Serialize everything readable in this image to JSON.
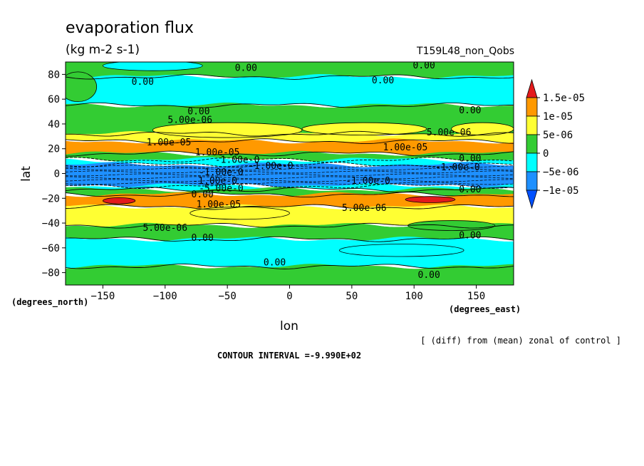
{
  "chart_data": {
    "type": "heatmap",
    "title": "evaporation flux",
    "subtitle": "(kg m-2 s-1)",
    "run_label": "T159L48_non_Qobs",
    "xlabel": "lon",
    "ylabel": "lat",
    "x_unit_label": "(degrees_east)",
    "y_unit_label": "(degrees_north)",
    "xlim": [
      -180,
      180
    ],
    "ylim": [
      -90,
      90
    ],
    "x_ticks": [
      -150,
      -100,
      -50,
      0,
      50,
      100,
      150
    ],
    "y_ticks": [
      80,
      60,
      40,
      20,
      0,
      -20,
      -40,
      -60,
      -80
    ],
    "note": "[ (diff) from (mean) zonal of control ]",
    "contour_interval_text": "CONTOUR INTERVAL =-9.990E+02",
    "colorbar": {
      "labels": [
        "1.5e-05",
        "1e-05",
        "5e-06",
        "0",
        "-5e-06",
        "-1e-05"
      ],
      "colors": [
        "#e41a1c",
        "#ff9900",
        "#ffff33",
        "#33cc33",
        "#00ffff",
        "#1e90ff",
        "#0050ff"
      ],
      "extend": "both"
    },
    "bands": [
      {
        "lat": [
          78,
          90
        ],
        "value": "0 to 5e-06",
        "color": "#33cc33"
      },
      {
        "lat": [
          55,
          78
        ],
        "value": "-5e-06 to 0",
        "color": "#00ffff"
      },
      {
        "lat": [
          32,
          55
        ],
        "value": "0 to 5e-06",
        "color": "#33cc33"
      },
      {
        "lat": [
          26,
          32
        ],
        "value": "5e-06 to 1e-05",
        "color": "#ffff33"
      },
      {
        "lat": [
          16,
          26
        ],
        "value": "1e-05 to 1.5e-05",
        "color": "#ff9900"
      },
      {
        "lat": [
          11,
          16
        ],
        "value": "0 to 5e-06",
        "color": "#33cc33"
      },
      {
        "lat": [
          7,
          11
        ],
        "value": "-5e-06 to 0",
        "color": "#00ffff"
      },
      {
        "lat": [
          -10,
          7
        ],
        "value": "-1e-05 to -5e-06",
        "color": "#1e90ff"
      },
      {
        "lat": [
          -13,
          -10
        ],
        "value": "-5e-06 to 0",
        "color": "#00ffff"
      },
      {
        "lat": [
          -17,
          -13
        ],
        "value": "0 to 5e-06",
        "color": "#33cc33"
      },
      {
        "lat": [
          -27,
          -17
        ],
        "value": "1e-05 to 1.5e-05",
        "color": "#ff9900"
      },
      {
        "lat": [
          -42,
          -27
        ],
        "value": "5e-06 to 1e-05",
        "color": "#ffff33"
      },
      {
        "lat": [
          -53,
          -42
        ],
        "value": "0 to 5e-06",
        "color": "#33cc33"
      },
      {
        "lat": [
          -75,
          -53
        ],
        "value": "-5e-06 to 0",
        "color": "#00ffff"
      },
      {
        "lat": [
          -90,
          -75
        ],
        "value": "0 to 5e-06",
        "color": "#33cc33"
      }
    ],
    "blobs": [
      {
        "lon": -50,
        "lat": 35,
        "rx": 60,
        "ry": 6,
        "color": "#ffff33"
      },
      {
        "lon": 60,
        "lat": 36,
        "rx": 50,
        "ry": 5,
        "color": "#ffff33"
      },
      {
        "lon": 155,
        "lat": 36,
        "rx": 25,
        "ry": 5,
        "color": "#ffff33"
      },
      {
        "lon": -170,
        "lat": 70,
        "rx": 15,
        "ry": 12,
        "color": "#33cc33"
      },
      {
        "lon": -110,
        "lat": 87,
        "rx": 40,
        "ry": 4,
        "color": "#00ffff"
      },
      {
        "lon": 130,
        "lat": -42,
        "rx": 35,
        "ry": 4,
        "color": "#33cc33"
      },
      {
        "lon": -40,
        "lat": -32,
        "rx": 40,
        "ry": 5,
        "color": "#ffff33"
      },
      {
        "lon": 90,
        "lat": -62,
        "rx": 50,
        "ry": 5,
        "color": "#00ffff"
      },
      {
        "lon": -137,
        "lat": -22,
        "rx": 13,
        "ry": 2.5,
        "color": "#e41a1c"
      },
      {
        "lon": 113,
        "lat": -21,
        "rx": 20,
        "ry": 2.5,
        "color": "#e41a1c"
      }
    ],
    "contour_labels": [
      {
        "text": "0.00",
        "lon": -35,
        "lat": 85
      },
      {
        "text": "0.00",
        "lon": -118,
        "lat": 74
      },
      {
        "text": "0.00",
        "lon": 75,
        "lat": 75
      },
      {
        "text": "0.00",
        "lon": 108,
        "lat": 87
      },
      {
        "text": "0.00",
        "lon": -73,
        "lat": 50
      },
      {
        "text": "5.00e-06",
        "lon": -80,
        "lat": 43
      },
      {
        "text": "0.00",
        "lon": 145,
        "lat": 51
      },
      {
        "text": "5.00e-06",
        "lon": 128,
        "lat": 33
      },
      {
        "text": "1.00e-05",
        "lon": -97,
        "lat": 25
      },
      {
        "text": "1.00e-05",
        "lon": 93,
        "lat": 21
      },
      {
        "text": "1.00e-05",
        "lon": -58,
        "lat": 17
      },
      {
        "text": "-1.00e-0",
        "lon": -42,
        "lat": 11
      },
      {
        "text": "-1.00e-0",
        "lon": -15,
        "lat": 6
      },
      {
        "text": "-1.00e-0",
        "lon": -55,
        "lat": 1
      },
      {
        "text": "-1.00e-0",
        "lon": -60,
        "lat": -6
      },
      {
        "text": "-1.00e-0",
        "lon": 63,
        "lat": -6
      },
      {
        "text": "-1.00e-0",
        "lon": 135,
        "lat": 5
      },
      {
        "text": "0.00",
        "lon": 145,
        "lat": 12
      },
      {
        "text": "0.00",
        "lon": 145,
        "lat": -13
      },
      {
        "text": "-5.00e-0",
        "lon": -55,
        "lat": -12
      },
      {
        "text": "0.00",
        "lon": -70,
        "lat": -17
      },
      {
        "text": "1.00e-05",
        "lon": -57,
        "lat": -25
      },
      {
        "text": "5.00e-06",
        "lon": 60,
        "lat": -28
      },
      {
        "text": "5.00e-06",
        "lon": -100,
        "lat": -44
      },
      {
        "text": "0.00",
        "lon": -70,
        "lat": -52
      },
      {
        "text": "0.00",
        "lon": 145,
        "lat": -50
      },
      {
        "text": "0.00",
        "lon": -12,
        "lat": -72
      },
      {
        "text": "0.00",
        "lon": 112,
        "lat": -82
      }
    ]
  }
}
